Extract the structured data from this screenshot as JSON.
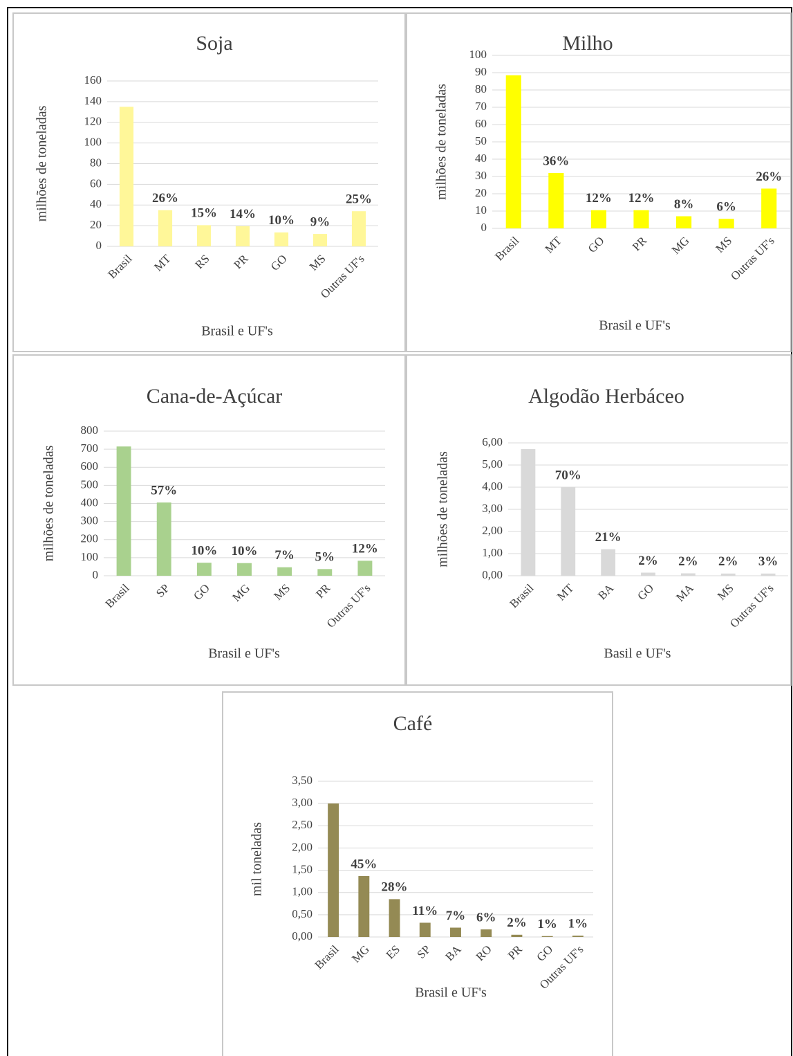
{
  "chart_data": [
    {
      "type": "bar",
      "title": "Soja",
      "x_label": "Brasil e UF's",
      "y_label": "milhões de toneladas",
      "color": "#fff799",
      "categories": [
        "Brasil",
        "MT",
        "RS",
        "PR",
        "GO",
        "MS",
        "Outras UF's"
      ],
      "values": [
        135,
        35,
        20.5,
        19.5,
        13.5,
        12,
        34
      ],
      "shares": [
        null,
        "26%",
        "15%",
        "14%",
        "10%",
        "9%",
        "25%"
      ],
      "ylim": [
        0,
        160
      ],
      "yticks": [
        0,
        20,
        40,
        60,
        80,
        100,
        120,
        140,
        160
      ],
      "grid": true
    },
    {
      "type": "bar",
      "title": "Milho",
      "x_label": "Brasil e UF's",
      "y_label": "milhões de toneladas",
      "color": "#ffff00",
      "categories": [
        "Brasil",
        "MT",
        "GO",
        "PR",
        "MG",
        "MS",
        "Outras UF's"
      ],
      "values": [
        88.5,
        32,
        10.5,
        10.5,
        7,
        5.5,
        23
      ],
      "shares": [
        null,
        "36%",
        "12%",
        "12%",
        "8%",
        "6%",
        "26%"
      ],
      "ylim": [
        0,
        100
      ],
      "yticks": [
        0,
        10,
        20,
        30,
        40,
        50,
        60,
        70,
        80,
        90,
        100
      ],
      "grid": true
    },
    {
      "type": "bar",
      "title": "Cana-de-Açúcar",
      "x_label": "Brasil e UF's",
      "y_label": "milhões de toneladas",
      "color": "#a9d18e",
      "categories": [
        "Brasil",
        "SP",
        "GO",
        "MG",
        "MS",
        "PR",
        "Outras UF's"
      ],
      "values": [
        715,
        405,
        72,
        70,
        47,
        37,
        83
      ],
      "shares": [
        null,
        "57%",
        "10%",
        "10%",
        "7%",
        "5%",
        "12%"
      ],
      "ylim": [
        0,
        800
      ],
      "yticks": [
        0,
        100,
        200,
        300,
        400,
        500,
        600,
        700,
        800
      ],
      "grid": true
    },
    {
      "type": "bar",
      "title": "Algodão Herbáceo",
      "x_label": "Basil e UF's",
      "y_label": "milhões de toneladas",
      "color": "#d9d9d9",
      "categories": [
        "Brasil",
        "MT",
        "BA",
        "GO",
        "MA",
        "MS",
        "Outras UF's"
      ],
      "values": [
        5.72,
        4.0,
        1.2,
        0.14,
        0.11,
        0.1,
        0.1
      ],
      "shares": [
        null,
        "70%",
        "21%",
        "2%",
        "2%",
        "2%",
        "3%"
      ],
      "ylim": [
        0,
        6
      ],
      "yticks": [
        {
          "value": 0,
          "label": "0,00"
        },
        {
          "value": 1,
          "label": "1,00"
        },
        {
          "value": 2,
          "label": "2,00"
        },
        {
          "value": 3,
          "label": "3,00"
        },
        {
          "value": 4,
          "label": "4,00"
        },
        {
          "value": 5,
          "label": "5,00"
        },
        {
          "value": 6,
          "label": "6,00"
        }
      ],
      "grid": true
    },
    {
      "type": "bar",
      "title": "Café",
      "x_label": "Brasil e UF's",
      "y_label": "mil toneladas",
      "color": "#948a54",
      "categories": [
        "Brasil",
        "MG",
        "ES",
        "SP",
        "BA",
        "RO",
        "PR",
        "GO",
        "Outras UF's"
      ],
      "values": [
        3.0,
        1.37,
        0.85,
        0.32,
        0.21,
        0.17,
        0.05,
        0.02,
        0.03
      ],
      "shares": [
        null,
        "45%",
        "28%",
        "11%",
        "7%",
        "6%",
        "2%",
        "1%",
        "1%"
      ],
      "ylim": [
        0,
        3.5
      ],
      "yticks": [
        {
          "value": 0,
          "label": "0,00"
        },
        {
          "value": 0.5,
          "label": "0,50"
        },
        {
          "value": 1,
          "label": "1,00"
        },
        {
          "value": 1.5,
          "label": "1,50"
        },
        {
          "value": 2,
          "label": "2,00"
        },
        {
          "value": 2.5,
          "label": "2,50"
        },
        {
          "value": 3,
          "label": "3,00"
        },
        {
          "value": 3.5,
          "label": "3,50"
        }
      ],
      "grid": true
    }
  ]
}
